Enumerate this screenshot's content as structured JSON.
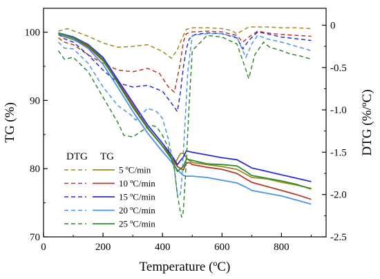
{
  "chart_data": {
    "type": "line",
    "xlabel": "Temperature (ºC)",
    "ylabel_left": "TG (%)",
    "ylabel_right": "DTG (%/ºC)",
    "xlim": [
      0,
      950
    ],
    "xticks": [
      0,
      200,
      400,
      600,
      800
    ],
    "ylim_left": [
      70,
      103.5
    ],
    "yticks_left": [
      70,
      80,
      90,
      100
    ],
    "ylim_right": [
      -2.5,
      0.2
    ],
    "yticks_right": [
      0,
      -0.5,
      -1.0,
      -1.5,
      -2.0,
      -2.5
    ],
    "yticks_right_labels": [
      "0",
      "-0.5",
      "-1.0",
      "-1.5",
      "-2.0",
      "-2.5"
    ],
    "legend": {
      "headers": [
        "DTG",
        "TG"
      ],
      "entries": [
        "5  ºC/min",
        "10 ºC/min",
        "15 ºC/min",
        "20 ºC/min",
        "25 ºC/min"
      ]
    },
    "series": [
      {
        "name": "5  ºC/min",
        "color": "#9b8c1c",
        "tg": {
          "x": [
            50,
            100,
            150,
            200,
            250,
            300,
            350,
            400,
            420,
            440,
            460,
            470,
            480,
            490,
            500,
            550,
            600,
            650,
            680,
            700,
            750,
            800,
            850,
            900
          ],
          "y": [
            99.6,
            98.9,
            97.8,
            95.8,
            92.6,
            89.3,
            86.0,
            83.3,
            82.3,
            80.6,
            82.2,
            82.3,
            81.6,
            81.2,
            80.9,
            80.6,
            80.3,
            79.9,
            79.2,
            78.7,
            78.5,
            78.0,
            77.6,
            77.1
          ]
        },
        "dtg": {
          "x": [
            50,
            80,
            150,
            200,
            250,
            300,
            350,
            400,
            430,
            450,
            460,
            480,
            500,
            550,
            600,
            630,
            650,
            670,
            690,
            720,
            750,
            800,
            850,
            900
          ],
          "y": [
            -0.07,
            -0.04,
            -0.13,
            -0.21,
            -0.26,
            -0.25,
            -0.23,
            -0.31,
            -0.39,
            -0.29,
            -0.2,
            -0.05,
            -0.03,
            -0.03,
            -0.04,
            -0.06,
            -0.1,
            -0.06,
            -0.02,
            -0.02,
            -0.02,
            -0.03,
            -0.03,
            -0.04
          ]
        }
      },
      {
        "name": "10 ºC/min",
        "color": "#b5382b",
        "tg": {
          "x": [
            50,
            100,
            150,
            200,
            250,
            300,
            350,
            400,
            430,
            450,
            470,
            480,
            490,
            500,
            550,
            600,
            650,
            680,
            700,
            750,
            800,
            850,
            900
          ],
          "y": [
            99.8,
            99.1,
            97.9,
            95.9,
            92.7,
            89.3,
            86.0,
            83.3,
            81.8,
            80.3,
            79.8,
            80.8,
            80.9,
            80.6,
            80.2,
            79.9,
            79.3,
            78.5,
            78.0,
            77.4,
            76.8,
            76.2,
            75.5
          ]
        },
        "dtg": {
          "x": [
            50,
            70,
            100,
            150,
            200,
            250,
            300,
            350,
            390,
            420,
            440,
            450,
            460,
            470,
            480,
            500,
            550,
            600,
            650,
            670,
            690,
            720,
            750,
            800,
            850,
            900
          ],
          "y": [
            -0.15,
            -0.2,
            -0.23,
            -0.35,
            -0.45,
            -0.53,
            -0.55,
            -0.51,
            -0.57,
            -0.73,
            -0.79,
            -0.62,
            -0.45,
            -0.2,
            -0.1,
            -0.08,
            -0.07,
            -0.08,
            -0.12,
            -0.2,
            -0.14,
            -0.07,
            -0.09,
            -0.11,
            -0.12,
            -0.13
          ]
        }
      },
      {
        "name": "15 ºC/min",
        "color": "#2b2bd6",
        "tg": {
          "x": [
            50,
            100,
            150,
            200,
            250,
            300,
            350,
            400,
            430,
            450,
            470,
            480,
            500,
            550,
            600,
            650,
            680,
            700,
            750,
            800,
            850,
            900
          ],
          "y": [
            99.9,
            99.3,
            98.2,
            96.3,
            93.0,
            89.7,
            86.4,
            83.7,
            82.0,
            80.6,
            81.7,
            82.6,
            82.4,
            82.0,
            81.6,
            81.3,
            80.6,
            80.1,
            79.6,
            79.1,
            78.6,
            78.1
          ]
        },
        "dtg": {
          "x": [
            50,
            70,
            100,
            150,
            200,
            250,
            300,
            350,
            400,
            430,
            450,
            460,
            470,
            480,
            490,
            510,
            550,
            600,
            650,
            670,
            690,
            720,
            750,
            800,
            850,
            900
          ],
          "y": [
            -0.1,
            -0.16,
            -0.2,
            -0.35,
            -0.53,
            -0.68,
            -0.73,
            -0.71,
            -0.78,
            -0.92,
            -1.02,
            -0.8,
            -0.5,
            -0.28,
            -0.16,
            -0.11,
            -0.09,
            -0.1,
            -0.15,
            -0.28,
            -0.18,
            -0.08,
            -0.1,
            -0.14,
            -0.16,
            -0.18
          ]
        }
      },
      {
        "name": "20 ºC/min",
        "color": "#4a93e6",
        "tg": {
          "x": [
            50,
            100,
            150,
            200,
            250,
            300,
            350,
            400,
            430,
            450,
            470,
            480,
            500,
            550,
            600,
            650,
            680,
            700,
            750,
            800,
            850,
            900
          ],
          "y": [
            99.8,
            99.0,
            97.6,
            95.3,
            91.9,
            88.4,
            85.2,
            82.5,
            81.0,
            79.8,
            79.0,
            78.9,
            78.9,
            78.7,
            78.3,
            77.9,
            77.3,
            76.8,
            76.4,
            76.0,
            75.4,
            74.8
          ]
        },
        "dtg": {
          "x": [
            50,
            70,
            100,
            150,
            200,
            250,
            290,
            310,
            330,
            350,
            380,
            400,
            420,
            440,
            450,
            460,
            465,
            475,
            485,
            500,
            550,
            600,
            650,
            680,
            700,
            720,
            750,
            800,
            850,
            900
          ],
          "y": [
            -0.2,
            -0.27,
            -0.28,
            -0.45,
            -0.73,
            -0.95,
            -1.05,
            -1.12,
            -1.05,
            -0.98,
            -1.02,
            -1.1,
            -1.35,
            -1.7,
            -2.0,
            -2.0,
            -1.82,
            -1.2,
            -0.55,
            -0.12,
            -0.1,
            -0.1,
            -0.14,
            -0.38,
            -0.22,
            -0.12,
            -0.16,
            -0.2,
            -0.25,
            -0.3
          ]
        }
      },
      {
        "name": "25 ºC/min",
        "color": "#2f8a2f",
        "tg": {
          "x": [
            50,
            100,
            150,
            200,
            250,
            300,
            350,
            400,
            430,
            450,
            470,
            480,
            500,
            550,
            600,
            650,
            680,
            700,
            750,
            800,
            850,
            900
          ],
          "y": [
            99.9,
            99.2,
            98.1,
            96.0,
            92.5,
            89.0,
            85.9,
            83.3,
            81.4,
            79.6,
            80.3,
            81.4,
            81.2,
            80.7,
            80.6,
            80.4,
            79.6,
            79.0,
            78.6,
            78.2,
            77.7,
            77.0
          ]
        },
        "dtg": {
          "x": [
            50,
            70,
            100,
            150,
            200,
            250,
            270,
            300,
            330,
            360,
            380,
            400,
            420,
            440,
            450,
            460,
            465,
            470,
            480,
            490,
            500,
            550,
            600,
            650,
            670,
            690,
            710,
            740,
            760,
            800,
            830,
            860,
            900
          ],
          "y": [
            -0.3,
            -0.4,
            -0.38,
            -0.55,
            -0.85,
            -1.15,
            -1.3,
            -1.32,
            -1.25,
            -1.18,
            -1.2,
            -1.3,
            -1.45,
            -1.7,
            -2.0,
            -2.2,
            -2.27,
            -2.2,
            -1.6,
            -0.9,
            -0.3,
            -0.12,
            -0.14,
            -0.22,
            -0.42,
            -0.63,
            -0.35,
            -0.2,
            -0.26,
            -0.3,
            -0.34,
            -0.36,
            -0.4
          ]
        }
      }
    ]
  }
}
